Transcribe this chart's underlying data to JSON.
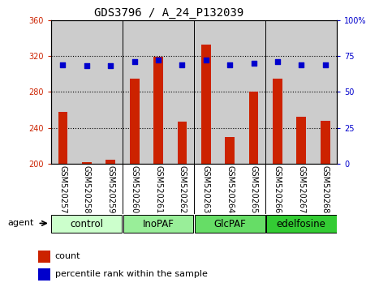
{
  "title": "GDS3796 / A_24_P132039",
  "samples": [
    "GSM520257",
    "GSM520258",
    "GSM520259",
    "GSM520260",
    "GSM520261",
    "GSM520262",
    "GSM520263",
    "GSM520264",
    "GSM520265",
    "GSM520266",
    "GSM520267",
    "GSM520268"
  ],
  "counts": [
    258,
    202,
    204,
    295,
    319,
    247,
    333,
    230,
    280,
    295,
    252,
    248
  ],
  "percentile_ranks": [
    69,
    68,
    68,
    71,
    72,
    69,
    72,
    69,
    70,
    71,
    69,
    69
  ],
  "groups": [
    {
      "label": "control",
      "start": 0,
      "end": 3,
      "color": "#ccffcc"
    },
    {
      "label": "InoPAF",
      "start": 3,
      "end": 6,
      "color": "#99ee99"
    },
    {
      "label": "GlcPAF",
      "start": 6,
      "end": 9,
      "color": "#66dd66"
    },
    {
      "label": "edelfosine",
      "start": 9,
      "end": 12,
      "color": "#33cc33"
    }
  ],
  "ylim_left": [
    200,
    360
  ],
  "ylim_right": [
    0,
    100
  ],
  "yticks_left": [
    200,
    240,
    280,
    320,
    360
  ],
  "yticks_right": [
    0,
    25,
    50,
    75,
    100
  ],
  "bar_color": "#cc2200",
  "dot_color": "#0000cc",
  "bar_width": 0.4,
  "bg_color": "#cccccc",
  "grid_color": "#000000",
  "title_fontsize": 10,
  "tick_fontsize": 7,
  "label_fontsize": 8,
  "group_label_fontsize": 8.5
}
